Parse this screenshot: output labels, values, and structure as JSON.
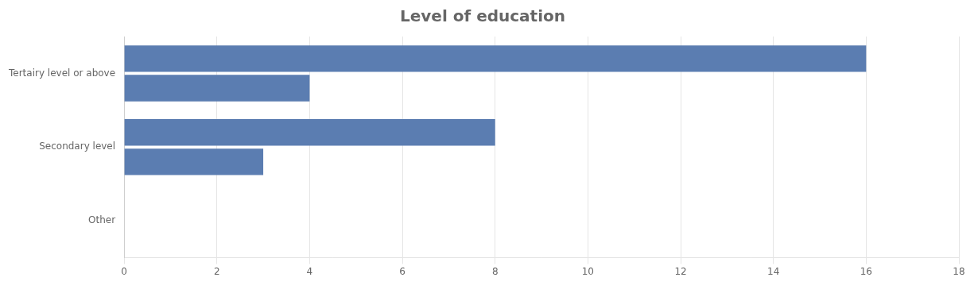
{
  "chart_data": {
    "type": "bar",
    "orientation": "horizontal",
    "title": "Level of education",
    "categories": [
      "Tertairy level or above",
      "Secondary level",
      "Other"
    ],
    "series": [
      {
        "color": "#5B7DB1",
        "values": [
          16,
          8,
          0
        ]
      },
      {
        "color": "#5B7DB1",
        "values": [
          4,
          3,
          0
        ]
      }
    ],
    "xlim": [
      0,
      18
    ],
    "xticks": [
      0,
      2,
      4,
      6,
      8,
      10,
      12,
      14,
      16,
      18
    ],
    "grid": true
  }
}
